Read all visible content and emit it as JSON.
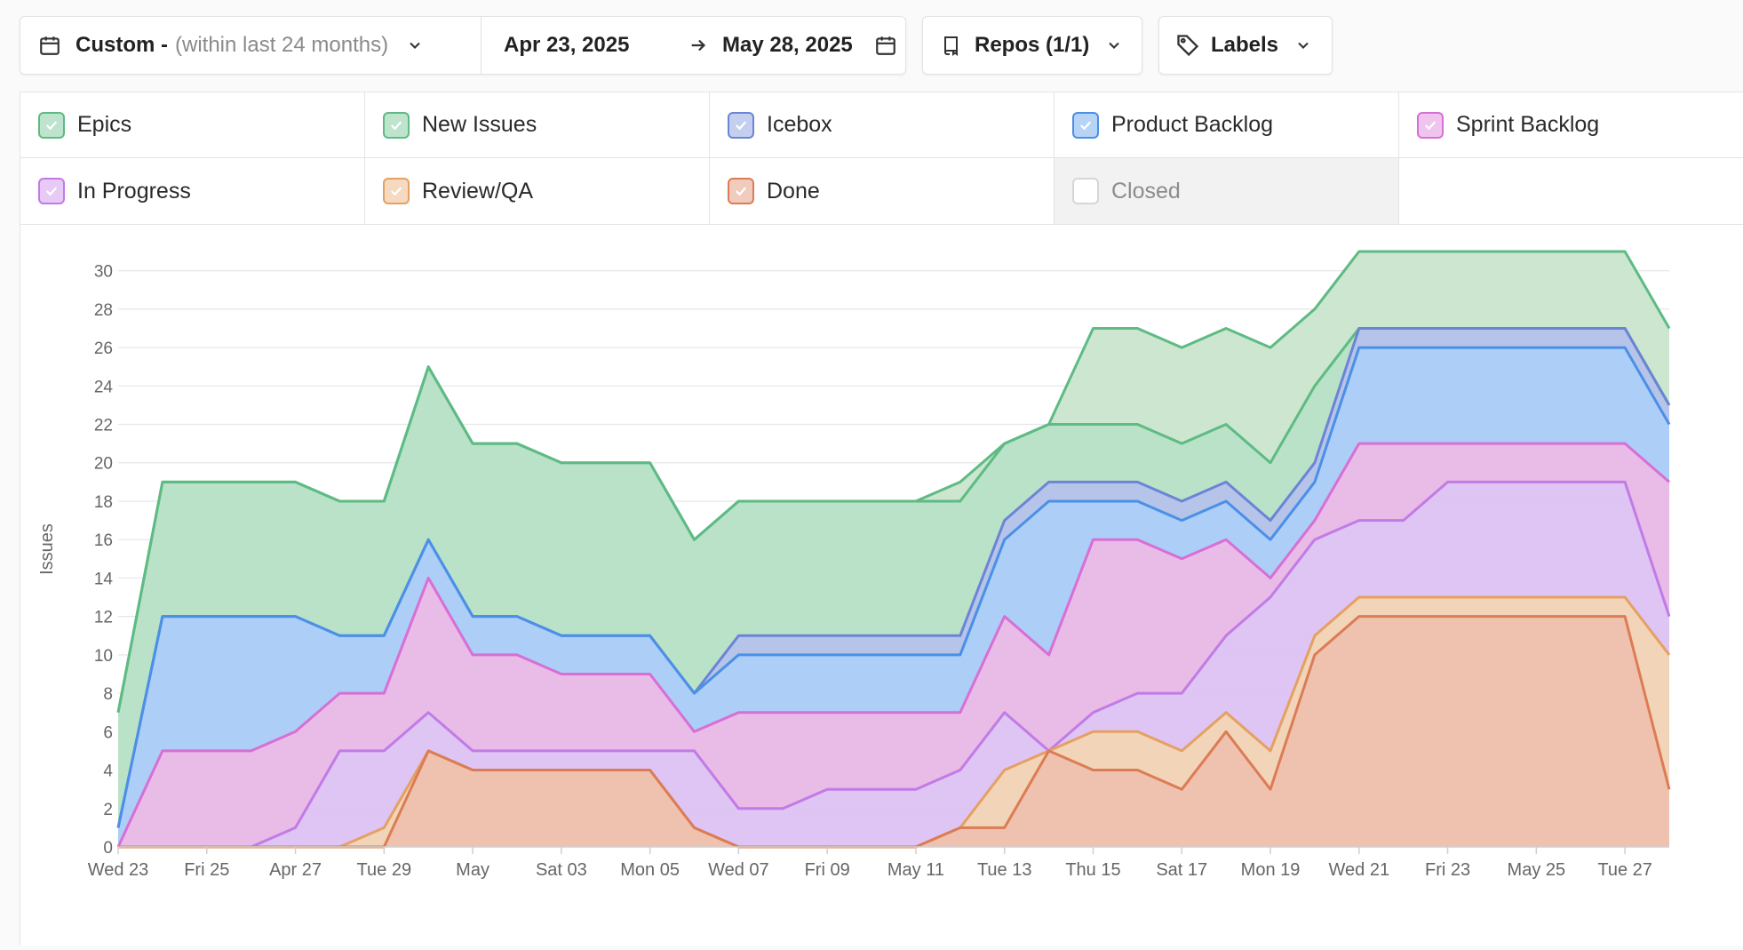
{
  "toolbar": {
    "date_range_label": "Custom -",
    "date_range_hint": "(within last 24 months)",
    "start_date": "Apr 23, 2025",
    "end_date": "May 28, 2025",
    "repos_label": "Repos (1/1)",
    "labels_label": "Labels"
  },
  "legend": [
    {
      "label": "Epics",
      "checked": true,
      "color": "#5dbb83"
    },
    {
      "label": "New Issues",
      "checked": true,
      "color": "#5dbb83"
    },
    {
      "label": "Icebox",
      "checked": true,
      "color": "#6b85d6"
    },
    {
      "label": "Product Backlog",
      "checked": true,
      "color": "#4a90e8"
    },
    {
      "label": "Sprint Backlog",
      "checked": true,
      "color": "#d76fd6"
    },
    {
      "label": "In Progress",
      "checked": true,
      "color": "#c27be6"
    },
    {
      "label": "Review/QA",
      "checked": true,
      "color": "#e5a063"
    },
    {
      "label": "Done",
      "checked": true,
      "color": "#dc7c55"
    },
    {
      "label": "Closed",
      "checked": false,
      "color": "#cccccc"
    }
  ],
  "chart_data": {
    "type": "area",
    "stacked": true,
    "ylabel": "Issues",
    "ylim": [
      0,
      31
    ],
    "yticks": [
      0,
      2,
      4,
      6,
      8,
      10,
      12,
      14,
      16,
      18,
      20,
      22,
      24,
      26,
      28,
      30
    ],
    "x": [
      "Wed 23",
      "Thu 24",
      "Fri 25",
      "Sat 26",
      "Apr 27",
      "Mon 28",
      "Tue 29",
      "Wed 30",
      "May",
      "Fri 02",
      "Sat 03",
      "Sun 04",
      "Mon 05",
      "Tue 06",
      "Wed 07",
      "Thu 08",
      "Fri 09",
      "Sat 10",
      "May 11",
      "Mon 12",
      "Tue 13",
      "Wed 14",
      "Thu 15",
      "Fri 16",
      "Sat 17",
      "Sun 18",
      "Mon 19",
      "Tue 20",
      "Wed 21",
      "Thu 22",
      "Fri 23",
      "Sat 24",
      "May 25",
      "Mon 26",
      "Tue 27",
      "Wed 28"
    ],
    "xtick_labels": [
      "Wed 23",
      "Fri 25",
      "Apr 27",
      "Tue 29",
      "May",
      "Sat 03",
      "Mon 05",
      "Wed 07",
      "Fri 09",
      "May 11",
      "Tue 13",
      "Thu 15",
      "Sat 17",
      "Mon 19",
      "Wed 21",
      "Fri 23",
      "May 25",
      "Tue 27"
    ],
    "series_cumulative": true,
    "series": [
      {
        "name": "Done",
        "color": "#dc7c55",
        "fill": "#eebfac",
        "values": [
          0,
          0,
          0,
          0,
          0,
          0,
          0,
          5,
          4,
          4,
          4,
          4,
          4,
          1,
          0,
          0,
          0,
          0,
          0,
          1,
          1,
          5,
          4,
          4,
          3,
          6,
          3,
          10,
          12,
          12,
          12,
          12,
          12,
          12,
          12,
          3
        ]
      },
      {
        "name": "Review/QA",
        "color": "#e5a063",
        "fill": "#f1d2b4",
        "values": [
          0,
          0,
          0,
          0,
          0,
          0,
          1,
          5,
          4,
          4,
          4,
          4,
          4,
          1,
          0,
          0,
          0,
          0,
          0,
          1,
          4,
          5,
          6,
          6,
          5,
          7,
          5,
          11,
          13,
          13,
          13,
          13,
          13,
          13,
          13,
          10
        ]
      },
      {
        "name": "In Progress",
        "color": "#c27be6",
        "fill": "#dcc2f3",
        "values": [
          0,
          0,
          0,
          0,
          1,
          5,
          5,
          7,
          5,
          5,
          5,
          5,
          5,
          5,
          2,
          2,
          3,
          3,
          3,
          4,
          7,
          5,
          7,
          8,
          8,
          11,
          13,
          16,
          17,
          17,
          19,
          19,
          19,
          19,
          19,
          12
        ]
      },
      {
        "name": "Sprint Backlog",
        "color": "#d76fd6",
        "fill": "#e8b7e6",
        "values": [
          0,
          5,
          5,
          5,
          6,
          8,
          8,
          14,
          10,
          10,
          9,
          9,
          9,
          6,
          7,
          7,
          7,
          7,
          7,
          7,
          12,
          10,
          16,
          16,
          15,
          16,
          14,
          17,
          21,
          21,
          21,
          21,
          21,
          21,
          21,
          19
        ]
      },
      {
        "name": "Product Backlog",
        "color": "#4a90e8",
        "fill": "#a9cbf5",
        "values": [
          1,
          12,
          12,
          12,
          12,
          11,
          11,
          16,
          12,
          12,
          11,
          11,
          11,
          8,
          10,
          10,
          10,
          10,
          10,
          10,
          16,
          18,
          18,
          18,
          17,
          18,
          16,
          19,
          26,
          26,
          26,
          26,
          26,
          26,
          26,
          22
        ]
      },
      {
        "name": "Icebox",
        "color": "#6b85d6",
        "fill": "#b3c1e8",
        "values": [
          1,
          12,
          12,
          12,
          12,
          11,
          11,
          16,
          12,
          12,
          11,
          11,
          11,
          8,
          11,
          11,
          11,
          11,
          11,
          11,
          17,
          19,
          19,
          19,
          18,
          19,
          17,
          20,
          27,
          27,
          27,
          27,
          27,
          27,
          27,
          23
        ]
      },
      {
        "name": "New Issues",
        "color": "#5dbb83",
        "fill": "#b6e0c5",
        "values": [
          7,
          19,
          19,
          19,
          19,
          18,
          18,
          25,
          21,
          21,
          20,
          20,
          20,
          16,
          18,
          18,
          18,
          18,
          18,
          18,
          21,
          22,
          22,
          22,
          21,
          22,
          20,
          24,
          27,
          27,
          27,
          27,
          27,
          27,
          27,
          23
        ]
      },
      {
        "name": "Epics",
        "color": "#5dbb83",
        "fill": "#c9e5cc",
        "values": [
          7,
          19,
          19,
          19,
          19,
          18,
          18,
          25,
          21,
          21,
          20,
          20,
          20,
          16,
          18,
          18,
          18,
          18,
          18,
          19,
          21,
          22,
          27,
          27,
          26,
          27,
          26,
          28,
          31,
          31,
          31,
          31,
          31,
          31,
          31,
          27
        ]
      }
    ]
  }
}
